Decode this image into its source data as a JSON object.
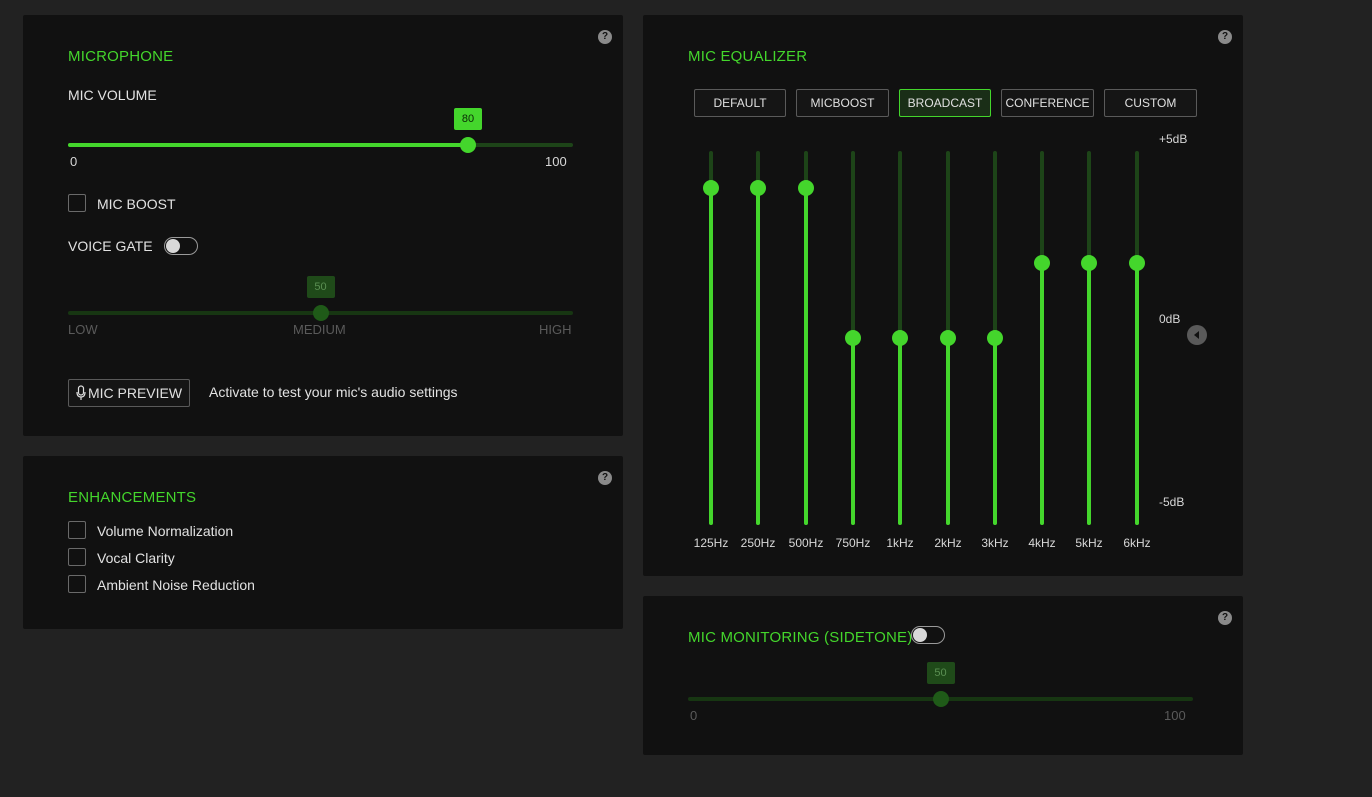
{
  "colors": {
    "accent": "#44d62c",
    "panel": "#111111",
    "background": "#222222"
  },
  "microphone": {
    "title": "MICROPHONE",
    "help": "?",
    "mic_volume_label": "MIC VOLUME",
    "mic_volume": {
      "value": 80,
      "display": "80",
      "min_label": "0",
      "max_label": "100",
      "max": 100
    },
    "mic_boost_label": "MIC BOOST",
    "mic_boost_checked": false,
    "voice_gate_label": "VOICE GATE",
    "voice_gate_on": false,
    "voice_gate_level": {
      "value": 50,
      "display": "50",
      "low": "LOW",
      "medium": "MEDIUM",
      "high": "HIGH",
      "max": 100
    },
    "mic_preview_label": "MIC PREVIEW",
    "mic_preview_icon": "microphone-icon",
    "mic_preview_hint": "Activate to test your mic's audio settings"
  },
  "enhancements": {
    "title": "ENHANCEMENTS",
    "help": "?",
    "items": [
      {
        "label": "Volume Normalization",
        "checked": false
      },
      {
        "label": "Vocal Clarity",
        "checked": false
      },
      {
        "label": "Ambient Noise Reduction",
        "checked": false
      }
    ]
  },
  "equalizer": {
    "title": "MIC EQUALIZER",
    "help": "?",
    "presets": [
      "DEFAULT",
      "MICBOOST",
      "BROADCAST",
      "CONFERENCE",
      "CUSTOM"
    ],
    "active_preset": "BROADCAST",
    "db_max_label": "+5dB",
    "db_mid_label": "0dB",
    "db_min_label": "-5dB",
    "db_range": [
      -5,
      5
    ],
    "bands": [
      {
        "freq": "125Hz",
        "db": 4
      },
      {
        "freq": "250Hz",
        "db": 4
      },
      {
        "freq": "500Hz",
        "db": 4
      },
      {
        "freq": "750Hz",
        "db": 0
      },
      {
        "freq": "1kHz",
        "db": 0
      },
      {
        "freq": "2kHz",
        "db": 0
      },
      {
        "freq": "3kHz",
        "db": 0
      },
      {
        "freq": "4kHz",
        "db": 2
      },
      {
        "freq": "5kHz",
        "db": 2
      },
      {
        "freq": "6kHz",
        "db": 2
      }
    ],
    "collapse_icon": "arrow-left-icon"
  },
  "monitoring": {
    "title": "MIC MONITORING (SIDETONE)",
    "help": "?",
    "enabled": false,
    "level": {
      "value": 50,
      "display": "50",
      "min_label": "0",
      "max_label": "100",
      "max": 100
    }
  }
}
